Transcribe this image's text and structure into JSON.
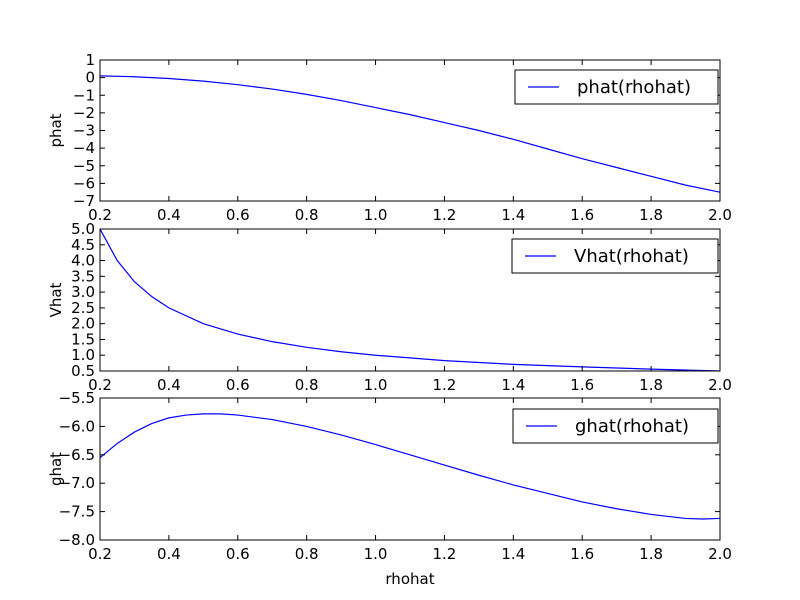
{
  "chart_data": [
    {
      "type": "line",
      "title": "",
      "xlabel": "",
      "ylabel": "phat",
      "xlim": [
        0.2,
        2.0
      ],
      "ylim": [
        -7,
        1
      ],
      "xticks": [
        "0.2",
        "0.4",
        "0.6",
        "0.8",
        "1.0",
        "1.2",
        "1.4",
        "1.6",
        "1.8",
        "2.0"
      ],
      "yticks": [
        "1",
        "0",
        "−1",
        "−2",
        "−3",
        "−4",
        "−5",
        "−6",
        "−7"
      ],
      "legend_position": "top-right",
      "series": [
        {
          "name": "phat(rhohat)",
          "color": "#0000ff",
          "x": [
            0.2,
            0.3,
            0.4,
            0.5,
            0.6,
            0.7,
            0.8,
            0.9,
            1.0,
            1.1,
            1.2,
            1.3,
            1.4,
            1.5,
            1.6,
            1.7,
            1.8,
            1.9,
            2.0
          ],
          "y": [
            0.1,
            0.05,
            -0.05,
            -0.2,
            -0.4,
            -0.65,
            -0.95,
            -1.3,
            -1.7,
            -2.1,
            -2.55,
            -3.0,
            -3.5,
            -4.05,
            -4.6,
            -5.1,
            -5.6,
            -6.1,
            -6.5
          ]
        }
      ]
    },
    {
      "type": "line",
      "title": "",
      "xlabel": "",
      "ylabel": "Vhat",
      "xlim": [
        0.2,
        2.0
      ],
      "ylim": [
        0.5,
        5.0
      ],
      "xticks": [
        "0.2",
        "0.4",
        "0.6",
        "0.8",
        "1.0",
        "1.2",
        "1.4",
        "1.6",
        "1.8",
        "2.0"
      ],
      "yticks": [
        "5.0",
        "4.5",
        "4.0",
        "3.5",
        "3.0",
        "2.5",
        "2.0",
        "1.5",
        "1.0",
        "0.5"
      ],
      "legend_position": "top-right",
      "series": [
        {
          "name": "Vhat(rhohat)",
          "color": "#0000ff",
          "x": [
            0.2,
            0.25,
            0.3,
            0.35,
            0.4,
            0.5,
            0.6,
            0.7,
            0.8,
            0.9,
            1.0,
            1.2,
            1.4,
            1.6,
            1.8,
            2.0
          ],
          "y": [
            5.0,
            4.0,
            3.33,
            2.86,
            2.5,
            2.0,
            1.67,
            1.43,
            1.25,
            1.11,
            1.0,
            0.83,
            0.71,
            0.63,
            0.56,
            0.5
          ]
        }
      ]
    },
    {
      "type": "line",
      "title": "",
      "xlabel": "rhohat",
      "ylabel": "ghat",
      "xlim": [
        0.2,
        2.0
      ],
      "ylim": [
        -8.0,
        -5.5
      ],
      "xticks": [
        "0.2",
        "0.4",
        "0.6",
        "0.8",
        "1.0",
        "1.2",
        "1.4",
        "1.6",
        "1.8",
        "2.0"
      ],
      "yticks": [
        "−5.5",
        "−6.0",
        "−6.5",
        "−7.0",
        "−7.5",
        "−8.0"
      ],
      "legend_position": "top-right",
      "series": [
        {
          "name": "ghat(rhohat)",
          "color": "#0000ff",
          "x": [
            0.2,
            0.25,
            0.3,
            0.35,
            0.4,
            0.45,
            0.5,
            0.55,
            0.6,
            0.7,
            0.8,
            0.9,
            1.0,
            1.1,
            1.2,
            1.3,
            1.4,
            1.5,
            1.6,
            1.7,
            1.8,
            1.9,
            1.95,
            2.0
          ],
          "y": [
            -6.55,
            -6.3,
            -6.1,
            -5.95,
            -5.85,
            -5.8,
            -5.78,
            -5.78,
            -5.8,
            -5.88,
            -6.0,
            -6.15,
            -6.32,
            -6.5,
            -6.68,
            -6.86,
            -7.03,
            -7.18,
            -7.33,
            -7.45,
            -7.55,
            -7.62,
            -7.63,
            -7.62
          ]
        }
      ]
    }
  ]
}
